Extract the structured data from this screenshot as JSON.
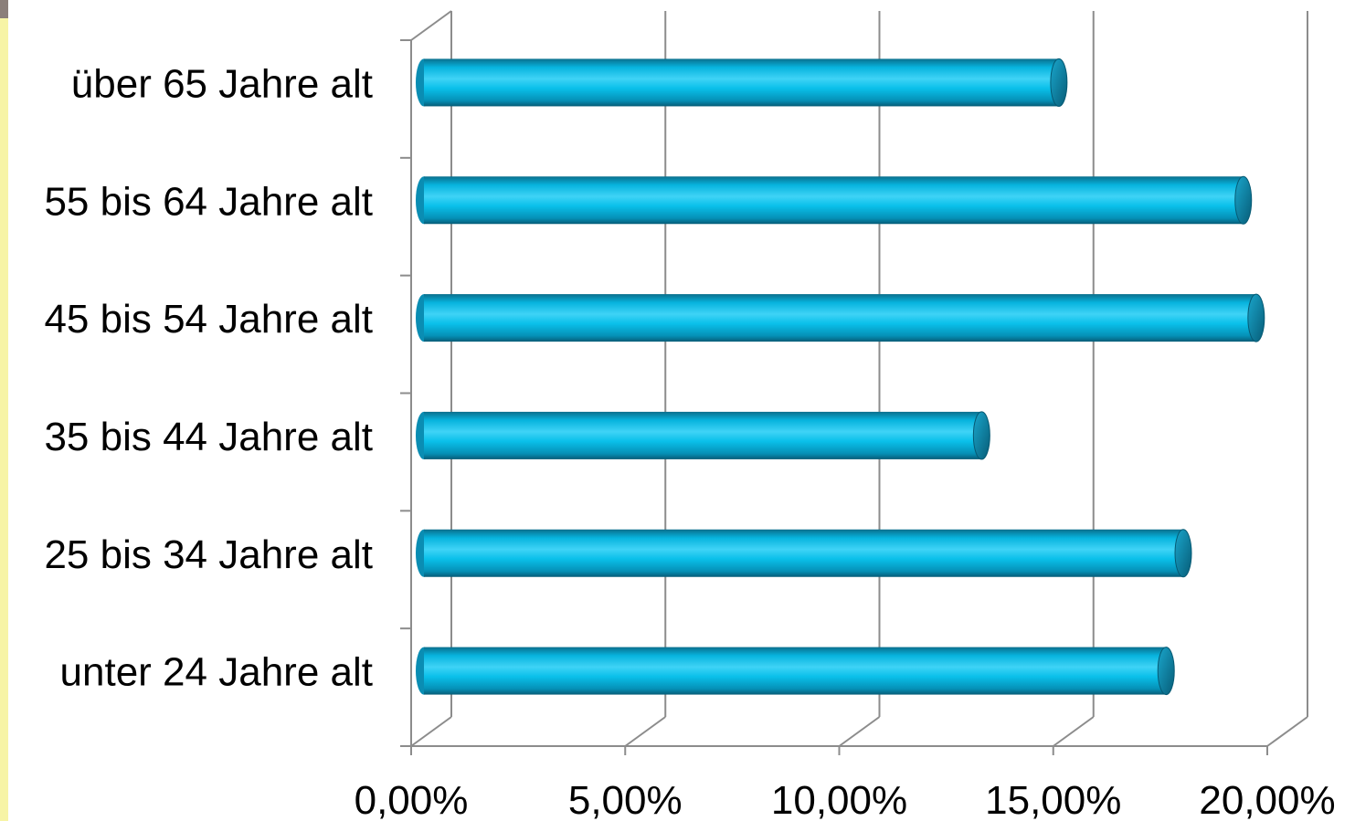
{
  "chart_data": {
    "type": "bar",
    "orientation": "horizontal",
    "style": "3d-cylinder",
    "categories": [
      "über 65 Jahre alt",
      "55 bis 64 Jahre alt",
      "45 bis 54 Jahre alt",
      "35 bis 44 Jahre alt",
      "25 bis 34 Jahre alt",
      "unter 24 Jahre alt"
    ],
    "values": [
      14.8,
      19.1,
      19.4,
      13.0,
      17.7,
      17.3
    ],
    "x_ticks": [
      "0,00%",
      "5,00%",
      "10,00%",
      "15,00%",
      "20,00%"
    ],
    "xlim": [
      0,
      20
    ],
    "title": "",
    "xlabel": "",
    "ylabel": "",
    "grid": true,
    "legend": "none",
    "colors": {
      "bar_main": "#00bde9",
      "bar_light": "#4fd5f7",
      "bar_dark": "#0a6f8d",
      "bar_end": "#0a7fa0",
      "grid": "#8c8c8c",
      "left_strip": "#f7f4a6"
    }
  }
}
